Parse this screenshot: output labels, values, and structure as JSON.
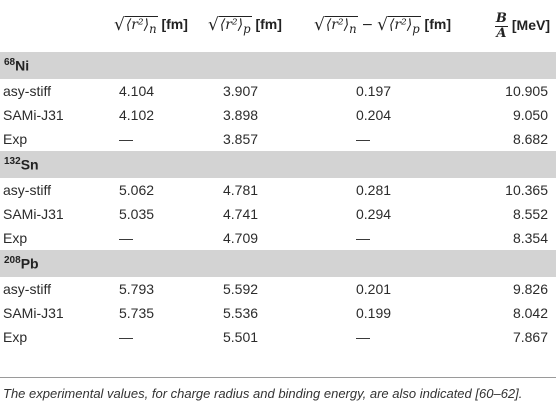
{
  "headers": {
    "col1_unit": "[fm]",
    "col2_unit": "[fm]",
    "col3_unit": "[fm]",
    "col4_unit": "[MeV]",
    "frac_num": "B",
    "frac_den": "A",
    "r_n": "⟨r²⟩",
    "sub_n": "n",
    "r_p": "⟨r²⟩",
    "sub_p": "p",
    "minus": "−"
  },
  "sections": [
    {
      "mass": "68",
      "element": "Ni",
      "rows": [
        {
          "name": "asy-stiff",
          "rn": "4.104",
          "rp": "3.907",
          "diff": "0.197",
          "ba": "10.905"
        },
        {
          "name": "SAMi-J31",
          "rn": "4.102",
          "rp": "3.898",
          "diff": "0.204",
          "ba": "9.050"
        },
        {
          "name": "Exp",
          "rn": "—",
          "rp": "3.857",
          "diff": "—",
          "ba": "8.682"
        }
      ]
    },
    {
      "mass": "132",
      "element": "Sn",
      "rows": [
        {
          "name": "asy-stiff",
          "rn": "5.062",
          "rp": "4.781",
          "diff": "0.281",
          "ba": "10.365"
        },
        {
          "name": "SAMi-J31",
          "rn": "5.035",
          "rp": "4.741",
          "diff": "0.294",
          "ba": "8.552"
        },
        {
          "name": "Exp",
          "rn": "—",
          "rp": "4.709",
          "diff": "—",
          "ba": "8.354"
        }
      ]
    },
    {
      "mass": "208",
      "element": "Pb",
      "rows": [
        {
          "name": "asy-stiff",
          "rn": "5.793",
          "rp": "5.592",
          "diff": "0.201",
          "ba": "9.826"
        },
        {
          "name": "SAMi-J31",
          "rn": "5.735",
          "rp": "5.536",
          "diff": "0.199",
          "ba": "8.042"
        },
        {
          "name": "Exp",
          "rn": "—",
          "rp": "5.501",
          "diff": "—",
          "ba": "7.867"
        }
      ]
    }
  ],
  "footnote": {
    "text": "The experimental values, for charge radius and binding energy, are also indicated [",
    "refs": "60–62",
    "end": "]."
  }
}
